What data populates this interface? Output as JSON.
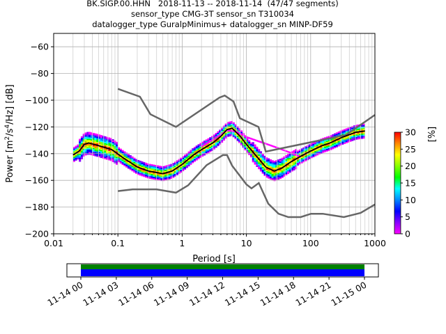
{
  "chart_data": {
    "type": "heatmap",
    "title_lines": [
      "BK.SIGP.00.HHN   2018-11-13 -- 2018-11-14  (47/47 segments)",
      "sensor_type CMG-3T sensor_sn T310034",
      "datalogger_type GuralpMinimus+ datalogger_sn MINP-DF59"
    ],
    "xlabel": "Period [s]",
    "ylabel_main": "Power [m",
    "ylabel_sup1": "2",
    "ylabel_mid": "/s",
    "ylabel_sup2": "4",
    "ylabel_end": "/Hz] [dB]",
    "x_scale": "log",
    "xlim": [
      0.01,
      1000
    ],
    "ylim": [
      -200,
      -50
    ],
    "x_tick_labels": [
      "0.01",
      "0.1",
      "1",
      "10",
      "100",
      "1000"
    ],
    "y_ticks": [
      -60,
      -80,
      -100,
      -120,
      -140,
      -160,
      -180,
      -200
    ],
    "grid": true,
    "colorbar": {
      "label": "[%]",
      "range": [
        0,
        30
      ],
      "ticks": [
        0,
        5,
        10,
        15,
        20,
        25,
        30
      ],
      "colors": [
        "#ffffff",
        "#ff00ff",
        "#8800ff",
        "#0000ff",
        "#0088ff",
        "#00ffff",
        "#00ff00",
        "#88ff00",
        "#ffff00",
        "#ff8800",
        "#ff0000"
      ]
    },
    "model_line_color": "#666666",
    "mode_line_color": "#000000",
    "new_high_noise_model": [
      [
        0.1,
        -91.5
      ],
      [
        0.22,
        -97.4
      ],
      [
        0.32,
        -110.5
      ],
      [
        0.8,
        -120
      ],
      [
        3.8,
        -98
      ],
      [
        4.6,
        -96.5
      ],
      [
        6.3,
        -101
      ],
      [
        7.9,
        -113.5
      ],
      [
        15.4,
        -120
      ],
      [
        20,
        -138.5
      ],
      [
        354.8,
        -126
      ],
      [
        1000,
        -111
      ]
    ],
    "new_low_noise_model": [
      [
        0.1,
        -168
      ],
      [
        0.17,
        -166.7
      ],
      [
        0.4,
        -166.7
      ],
      [
        0.8,
        -169.2
      ],
      [
        1.24,
        -163.7
      ],
      [
        2.4,
        -148.6
      ],
      [
        4.3,
        -141.1
      ],
      [
        5,
        -141.1
      ],
      [
        6,
        -149
      ],
      [
        10,
        -163
      ],
      [
        12,
        -166
      ],
      [
        15.6,
        -162
      ],
      [
        21.9,
        -177.5
      ],
      [
        31.6,
        -185
      ],
      [
        45,
        -187.5
      ],
      [
        70,
        -187.5
      ],
      [
        101,
        -185
      ],
      [
        154,
        -185
      ],
      [
        328,
        -187.5
      ],
      [
        600,
        -184.4
      ],
      [
        1000,
        -178
      ]
    ],
    "mode_curve": [
      [
        0.02,
        -141
      ],
      [
        0.025,
        -138
      ],
      [
        0.03,
        -133
      ],
      [
        0.035,
        -132
      ],
      [
        0.05,
        -134
      ],
      [
        0.08,
        -137
      ],
      [
        0.12,
        -143
      ],
      [
        0.2,
        -150
      ],
      [
        0.3,
        -153
      ],
      [
        0.5,
        -155
      ],
      [
        0.7,
        -153
      ],
      [
        1,
        -148
      ],
      [
        1.5,
        -141
      ],
      [
        2,
        -137
      ],
      [
        3,
        -132
      ],
      [
        4,
        -127
      ],
      [
        5,
        -122
      ],
      [
        6,
        -121
      ],
      [
        8,
        -127
      ],
      [
        10,
        -133
      ],
      [
        15,
        -143
      ],
      [
        20,
        -150
      ],
      [
        27,
        -153
      ],
      [
        35,
        -151
      ],
      [
        50,
        -146
      ],
      [
        70,
        -142
      ],
      [
        100,
        -138
      ],
      [
        150,
        -134
      ],
      [
        200,
        -132
      ],
      [
        300,
        -128
      ],
      [
        500,
        -124
      ],
      [
        700,
        -123
      ]
    ],
    "upper_branch": [
      [
        2,
        -135
      ],
      [
        3,
        -130
      ],
      [
        5,
        -123
      ],
      [
        7,
        -124
      ],
      [
        10,
        -128
      ],
      [
        15,
        -131
      ],
      [
        20,
        -133
      ],
      [
        30,
        -136
      ],
      [
        50,
        -140
      ],
      [
        70,
        -143
      ]
    ],
    "time_axis": {
      "tick_labels": [
        "11-14 00",
        "11-14 03",
        "11-14 06",
        "11-14 09",
        "11-14 12",
        "11-14 15",
        "11-14 18",
        "11-14 21",
        "11-15 00"
      ],
      "bar_colors": [
        "#008000",
        "#0000ff"
      ]
    }
  }
}
